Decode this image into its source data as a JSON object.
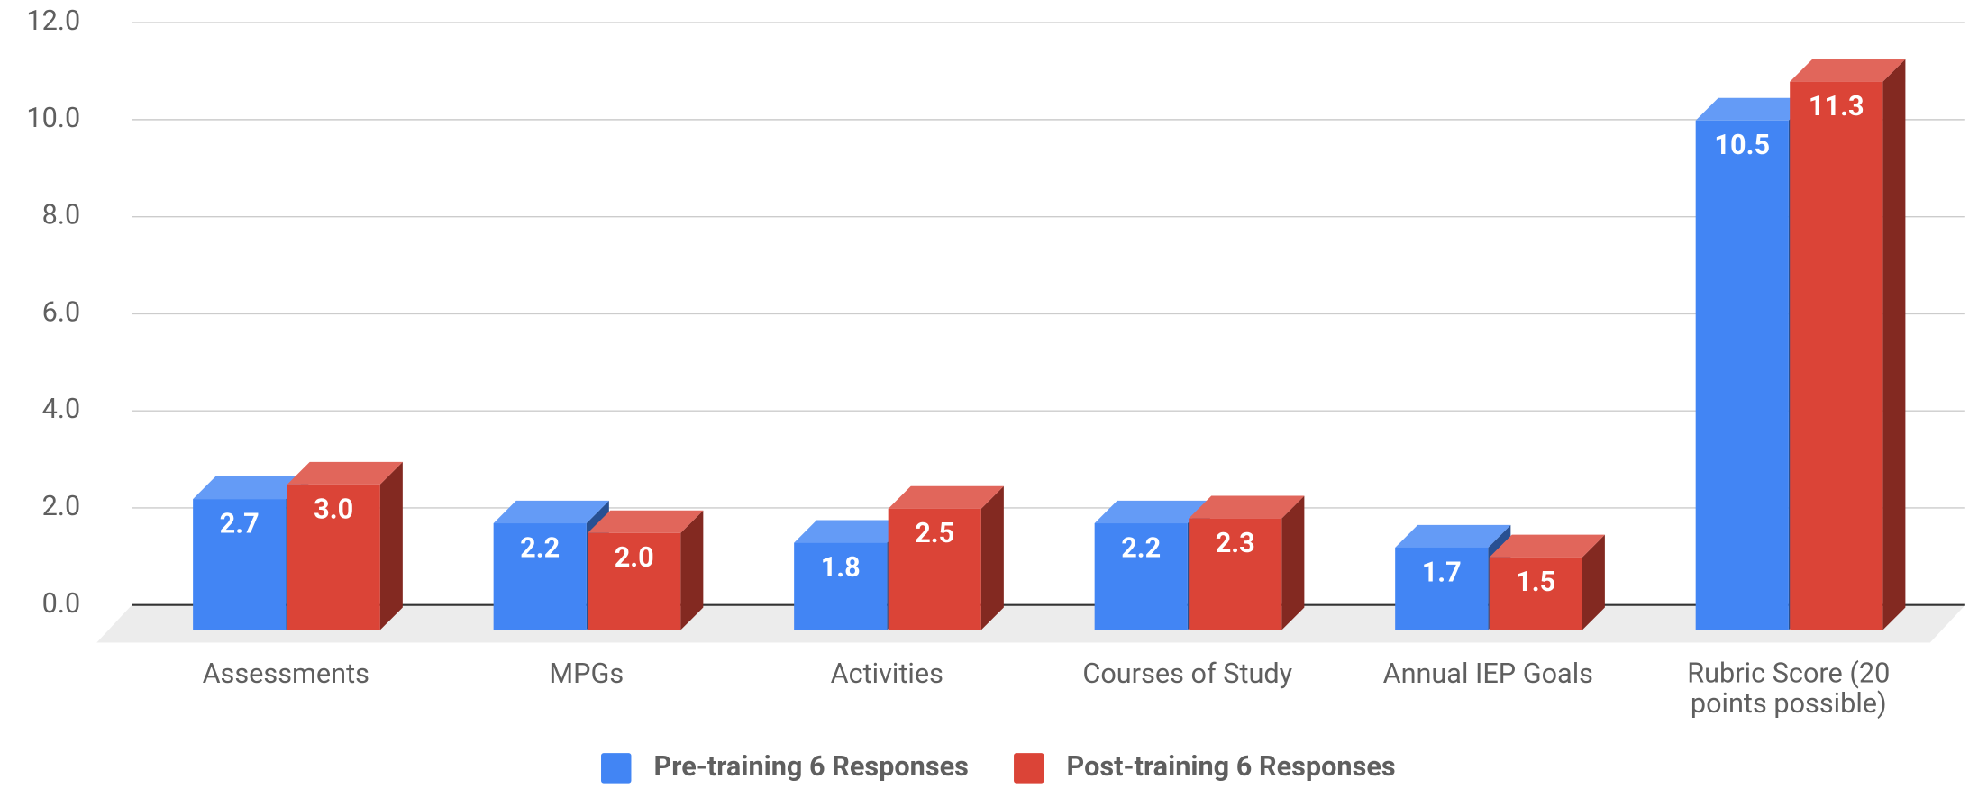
{
  "chart_data": {
    "type": "bar3d",
    "categories": [
      "Assessments",
      "MPGs",
      "Activities",
      "Courses of Study",
      "Annual IEP Goals",
      "Rubric Score (20 points possible)"
    ],
    "series": [
      {
        "name": "Pre-training 6 Responses",
        "color": "#4285f4",
        "values": [
          2.7,
          2.2,
          1.8,
          2.2,
          1.7,
          10.5
        ],
        "value_labels": [
          "2.7",
          "2.2",
          "1.8",
          "2.2",
          "1.7",
          "10.5"
        ]
      },
      {
        "name": "Post-training 6 Responses",
        "color": "#db4437",
        "values": [
          3.0,
          2.0,
          2.5,
          2.3,
          1.5,
          11.3
        ],
        "value_labels": [
          "3.0",
          "2.0",
          "2.5",
          "2.3",
          "1.5",
          "11.3"
        ]
      }
    ],
    "ylim": [
      0,
      12
    ],
    "yticks": [
      {
        "value": 0,
        "label": "0.0"
      },
      {
        "value": 2,
        "label": "2.0"
      },
      {
        "value": 4,
        "label": "4.0"
      },
      {
        "value": 6,
        "label": "6.0"
      },
      {
        "value": 8,
        "label": "8.0"
      },
      {
        "value": 10,
        "label": "10.0"
      },
      {
        "value": 12,
        "label": "12.0"
      }
    ],
    "grid": true,
    "legend": "bottom"
  }
}
